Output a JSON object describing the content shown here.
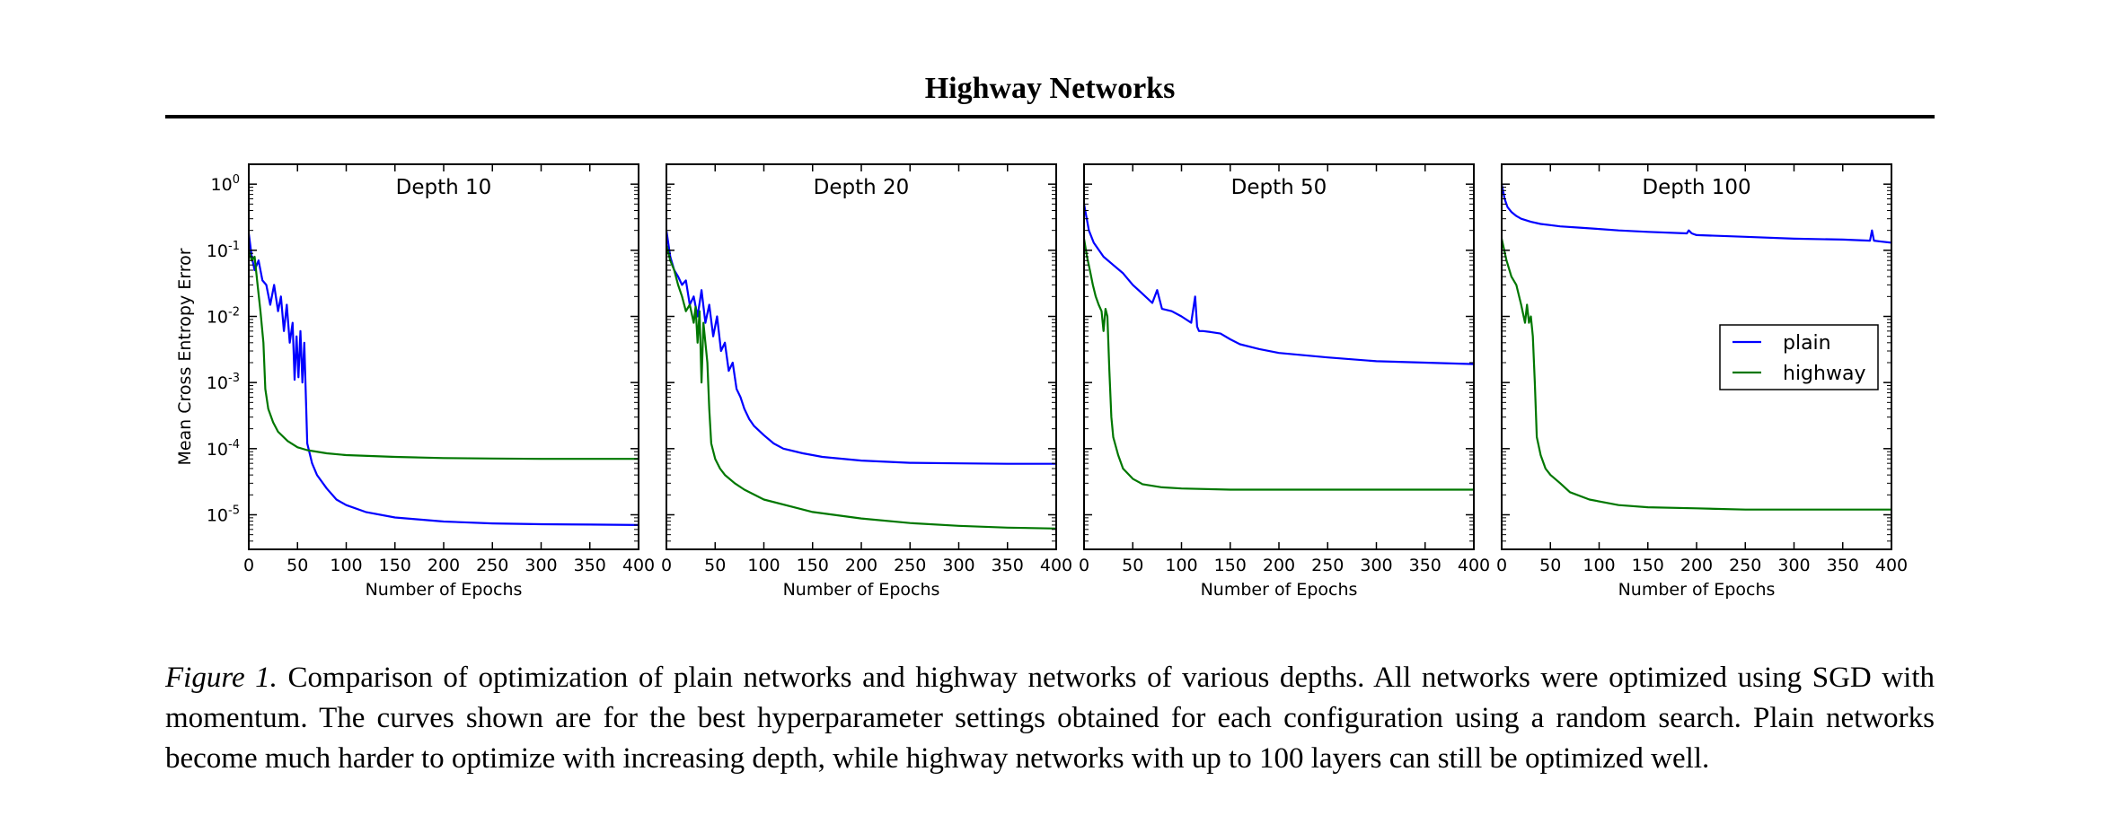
{
  "header": {
    "title": "Highway Networks"
  },
  "chart_data": [
    {
      "type": "line",
      "title": "Depth 10",
      "xlabel": "Number of Epochs",
      "ylabel": "Mean Cross Entropy Error",
      "xlim": [
        0,
        400
      ],
      "ylim": [
        3e-06,
        2
      ],
      "yscale": "log",
      "xticks": [
        0,
        50,
        100,
        150,
        200,
        250,
        300,
        350,
        400
      ],
      "series": [
        {
          "name": "plain",
          "color": "#0000ff",
          "x": [
            0,
            3,
            6,
            10,
            14,
            18,
            22,
            26,
            30,
            33,
            36,
            39,
            42,
            45,
            47,
            49,
            51,
            53,
            55,
            57,
            60,
            65,
            70,
            80,
            90,
            100,
            120,
            150,
            200,
            250,
            300,
            350,
            400
          ],
          "y": [
            0.18,
            0.08,
            0.05,
            0.07,
            0.035,
            0.03,
            0.015,
            0.03,
            0.012,
            0.02,
            0.006,
            0.015,
            0.004,
            0.008,
            0.0011,
            0.005,
            0.0012,
            0.006,
            0.001,
            0.004,
            0.00012,
            6e-05,
            4e-05,
            2.5e-05,
            1.7e-05,
            1.4e-05,
            1.1e-05,
            9.1e-06,
            7.9e-06,
            7.4e-06,
            7.2e-06,
            7.1e-06,
            7e-06
          ]
        },
        {
          "name": "highway",
          "color": "#007700",
          "x": [
            0,
            3,
            6,
            9,
            12,
            15,
            17,
            20,
            25,
            30,
            40,
            50,
            60,
            80,
            100,
            150,
            200,
            250,
            300,
            350,
            400
          ],
          "y": [
            0.1,
            0.07,
            0.08,
            0.03,
            0.012,
            0.004,
            0.0008,
            0.0004,
            0.00025,
            0.00018,
            0.00013,
            0.000105,
            9.5e-05,
            8.5e-05,
            8e-05,
            7.5e-05,
            7.2e-05,
            7.1e-05,
            7e-05,
            7e-05,
            7e-05
          ]
        }
      ]
    },
    {
      "type": "line",
      "title": "Depth 20",
      "xlabel": "Number of Epochs",
      "ylabel": "",
      "xlim": [
        0,
        400
      ],
      "ylim": [
        3e-06,
        2
      ],
      "yscale": "log",
      "xticks": [
        0,
        50,
        100,
        150,
        200,
        250,
        300,
        350,
        400
      ],
      "series": [
        {
          "name": "plain",
          "color": "#0000ff",
          "x": [
            0,
            4,
            8,
            12,
            16,
            20,
            24,
            28,
            32,
            36,
            40,
            44,
            48,
            52,
            56,
            60,
            64,
            68,
            72,
            76,
            80,
            85,
            90,
            100,
            110,
            120,
            140,
            160,
            200,
            250,
            300,
            350,
            400
          ],
          "y": [
            0.2,
            0.08,
            0.05,
            0.04,
            0.03,
            0.035,
            0.015,
            0.02,
            0.01,
            0.025,
            0.008,
            0.015,
            0.005,
            0.01,
            0.003,
            0.004,
            0.0015,
            0.002,
            0.0008,
            0.0006,
            0.0004,
            0.00028,
            0.00022,
            0.00016,
            0.00012,
            0.0001,
            8.5e-05,
            7.5e-05,
            6.6e-05,
            6.1e-05,
            6e-05,
            5.9e-05,
            5.9e-05
          ]
        },
        {
          "name": "highway",
          "color": "#007700",
          "x": [
            0,
            4,
            8,
            12,
            16,
            20,
            24,
            28,
            30,
            32,
            34,
            36,
            38,
            40,
            42,
            44,
            46,
            50,
            55,
            60,
            70,
            80,
            100,
            150,
            200,
            250,
            300,
            350,
            400
          ],
          "y": [
            0.12,
            0.07,
            0.05,
            0.03,
            0.02,
            0.012,
            0.015,
            0.008,
            0.014,
            0.004,
            0.012,
            0.001,
            0.008,
            0.004,
            0.002,
            0.0004,
            0.00012,
            7e-05,
            5e-05,
            4e-05,
            3e-05,
            2.4e-05,
            1.7e-05,
            1.1e-05,
            8.8e-06,
            7.5e-06,
            6.8e-06,
            6.4e-06,
            6.2e-06
          ]
        }
      ]
    },
    {
      "type": "line",
      "title": "Depth 50",
      "xlabel": "Number of Epochs",
      "ylabel": "",
      "xlim": [
        0,
        400
      ],
      "ylim": [
        3e-06,
        2
      ],
      "yscale": "log",
      "xticks": [
        0,
        50,
        100,
        150,
        200,
        250,
        300,
        350,
        400
      ],
      "series": [
        {
          "name": "plain",
          "color": "#0000ff",
          "x": [
            0,
            5,
            10,
            20,
            30,
            40,
            50,
            60,
            70,
            75,
            80,
            90,
            100,
            110,
            114,
            116,
            118,
            122,
            130,
            140,
            150,
            160,
            180,
            200,
            250,
            300,
            350,
            400
          ],
          "y": [
            0.5,
            0.2,
            0.13,
            0.08,
            0.06,
            0.045,
            0.03,
            0.022,
            0.016,
            0.025,
            0.013,
            0.012,
            0.01,
            0.008,
            0.02,
            0.007,
            0.006,
            0.006,
            0.0058,
            0.0055,
            0.0045,
            0.0038,
            0.0032,
            0.0028,
            0.0024,
            0.0021,
            0.002,
            0.0019
          ]
        },
        {
          "name": "highway",
          "color": "#007700",
          "x": [
            0,
            3,
            6,
            9,
            12,
            15,
            18,
            20,
            22,
            24,
            26,
            28,
            30,
            35,
            40,
            50,
            60,
            80,
            100,
            150,
            200,
            250,
            300,
            350,
            400
          ],
          "y": [
            0.15,
            0.08,
            0.05,
            0.03,
            0.02,
            0.015,
            0.012,
            0.006,
            0.013,
            0.01,
            0.0015,
            0.0003,
            0.00015,
            8e-05,
            5e-05,
            3.5e-05,
            2.9e-05,
            2.6e-05,
            2.5e-05,
            2.4e-05,
            2.4e-05,
            2.4e-05,
            2.4e-05,
            2.4e-05,
            2.4e-05
          ]
        }
      ]
    },
    {
      "type": "line",
      "title": "Depth 100",
      "xlabel": "Number of Epochs",
      "ylabel": "",
      "xlim": [
        0,
        400
      ],
      "ylim": [
        3e-06,
        2
      ],
      "yscale": "log",
      "xticks": [
        0,
        50,
        100,
        150,
        200,
        250,
        300,
        350,
        400
      ],
      "legend": {
        "position": "right",
        "entries": [
          "plain",
          "highway"
        ]
      },
      "series": [
        {
          "name": "plain",
          "color": "#0000ff",
          "x": [
            0,
            3,
            6,
            10,
            15,
            20,
            30,
            40,
            50,
            60,
            80,
            100,
            120,
            150,
            190,
            192,
            195,
            200,
            250,
            300,
            350,
            378,
            380,
            382,
            390,
            400
          ],
          "y": [
            1.0,
            0.6,
            0.45,
            0.38,
            0.33,
            0.3,
            0.27,
            0.25,
            0.24,
            0.23,
            0.22,
            0.21,
            0.2,
            0.19,
            0.18,
            0.2,
            0.18,
            0.17,
            0.16,
            0.15,
            0.145,
            0.14,
            0.2,
            0.14,
            0.135,
            0.13
          ]
        },
        {
          "name": "highway",
          "color": "#007700",
          "x": [
            0,
            5,
            10,
            15,
            20,
            24,
            26,
            28,
            30,
            32,
            34,
            36,
            40,
            45,
            50,
            60,
            70,
            90,
            120,
            150,
            200,
            250,
            300,
            350,
            400
          ],
          "y": [
            0.15,
            0.07,
            0.04,
            0.03,
            0.015,
            0.008,
            0.015,
            0.008,
            0.01,
            0.005,
            0.001,
            0.00015,
            8e-05,
            5e-05,
            4e-05,
            3e-05,
            2.2e-05,
            1.7e-05,
            1.4e-05,
            1.3e-05,
            1.25e-05,
            1.2e-05,
            1.2e-05,
            1.2e-05,
            1.2e-05
          ]
        }
      ]
    }
  ],
  "caption": {
    "label": "Figure 1.",
    "text": " Comparison of optimization of plain networks and highway networks of various depths.  All networks were optimized using SGD with momentum.  The curves shown are for the best hyperparameter settings obtained for each configuration using a random search. Plain networks become much harder to optimize with increasing depth, while highway networks with up to 100 layers can still be optimized well."
  }
}
